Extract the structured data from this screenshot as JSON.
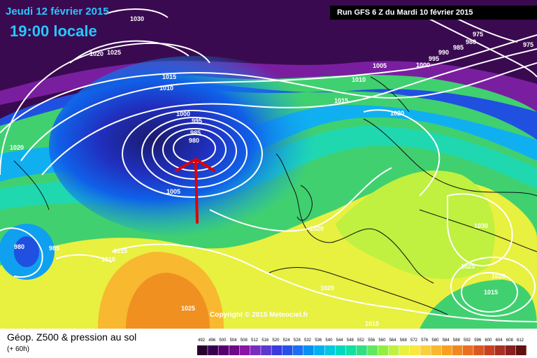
{
  "header": {
    "date": "Jeudi 12 février 2015",
    "time": "19:00 locale",
    "run": "Run GFS 6 Z du Mardi 10 février 2015"
  },
  "copyright": "Copyright © 2015 Meteociel.fr",
  "footer": {
    "title": "Géop. Z500 & pression au sol",
    "subtitle": "(+ 60h)"
  },
  "legend": {
    "values": [
      "492",
      "496",
      "500",
      "504",
      "508",
      "512",
      "516",
      "520",
      "524",
      "528",
      "532",
      "536",
      "540",
      "544",
      "548",
      "552",
      "556",
      "560",
      "564",
      "568",
      "572",
      "576",
      "580",
      "584",
      "588",
      "592",
      "596",
      "600",
      "604",
      "608",
      "612"
    ],
    "colors": [
      "#2a0030",
      "#3a0050",
      "#55006e",
      "#6e0a8a",
      "#8a14a6",
      "#7a2cc0",
      "#5a3ad0",
      "#3a3ae0",
      "#2850ea",
      "#1a70f0",
      "#0a90f0",
      "#00b0f0",
      "#00c8e0",
      "#00d8c0",
      "#10e0a0",
      "#30e080",
      "#60e860",
      "#90f040",
      "#c0f040",
      "#e8f040",
      "#f8e840",
      "#f8d040",
      "#f8b830",
      "#f8a020",
      "#f08820",
      "#e87020",
      "#d85820",
      "#c84020",
      "#a83020",
      "#882020",
      "#601010"
    ]
  },
  "isobars": [
    "1030",
    "1025",
    "1020",
    "1015",
    "1010",
    "1005",
    "1000",
    "995",
    "990",
    "985",
    "980",
    "975"
  ],
  "arrow_color": "#e00000"
}
